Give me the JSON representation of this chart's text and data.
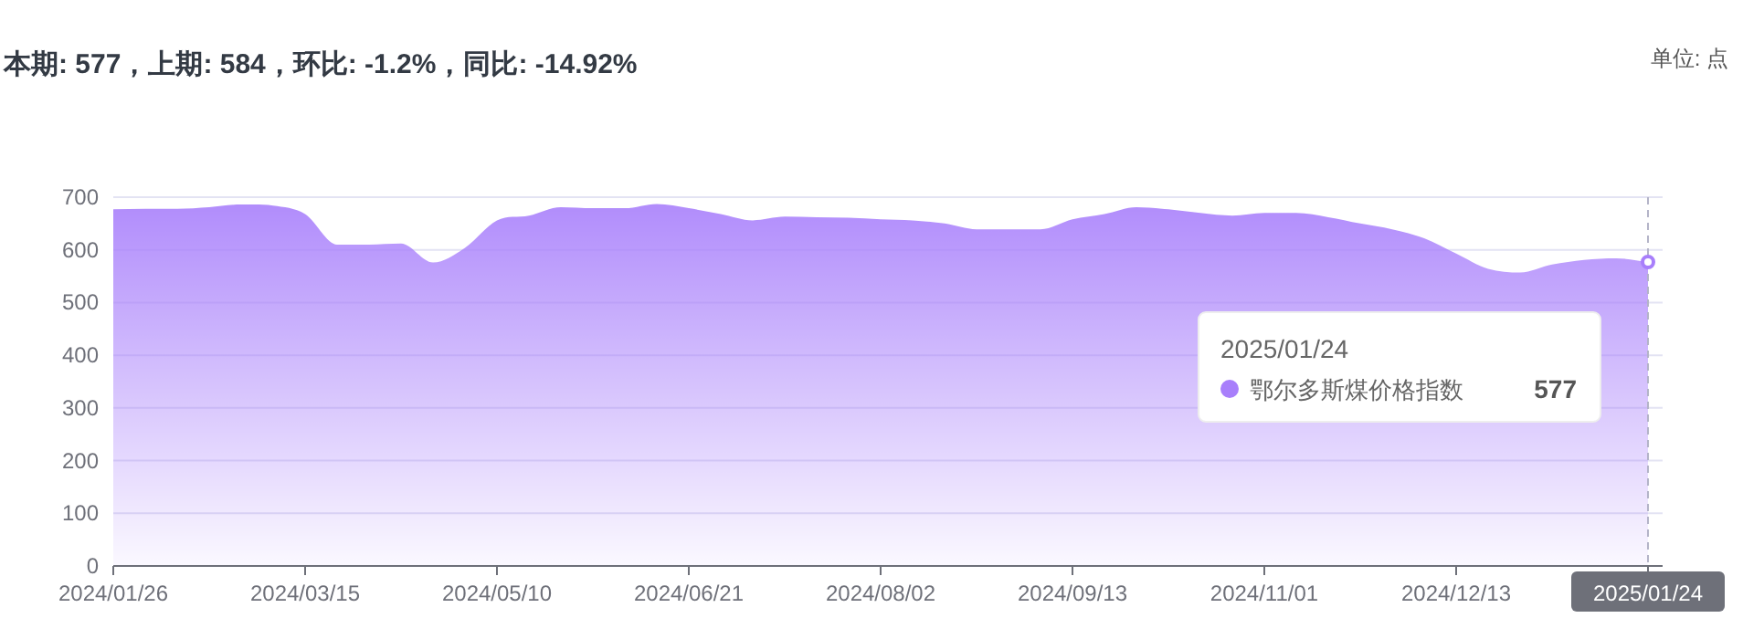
{
  "chart_data": {
    "type": "area",
    "title": "本期: 577，上期: 584，环比: -1.2%，同比: -14.92%",
    "annotations": [
      "单位: 点",
      "2025/01/24",
      "577"
    ],
    "categories": [
      "2024/01/26",
      null,
      null,
      null,
      null,
      null,
      "2024/03/15",
      null,
      null,
      null,
      null,
      null,
      "2024/05/10",
      null,
      null,
      null,
      null,
      null,
      "2024/06/21",
      null,
      null,
      null,
      null,
      null,
      "2024/08/02",
      null,
      null,
      null,
      null,
      null,
      "2024/09/13",
      null,
      null,
      null,
      null,
      null,
      "2024/11/01",
      null,
      null,
      null,
      null,
      null,
      "2024/12/13",
      null,
      null,
      null,
      null,
      null,
      "2025/01/24"
    ],
    "series": [
      {
        "name": "鄂尔多斯煤价格指数",
        "color": "#a87ffb",
        "values": [
          677,
          678,
          678,
          681,
          686,
          684,
          668,
          610,
          610,
          612,
          576,
          604,
          656,
          665,
          681,
          679,
          679,
          687,
          679,
          668,
          656,
          663,
          662,
          661,
          658,
          656,
          650,
          639,
          639,
          639,
          658,
          668,
          681,
          677,
          670,
          665,
          670,
          670,
          662,
          650,
          639,
          622,
          593,
          564,
          557,
          572,
          581,
          584,
          577
        ]
      }
    ],
    "ylim": [
      0,
      700
    ],
    "yticks": [
      0,
      100,
      200,
      300,
      400,
      500,
      600,
      700
    ],
    "grid": "y",
    "legend": "right",
    "ref_lines": [
      {
        "axis": "x",
        "value": "2025/01/24",
        "color": "#b4b4c8",
        "line_style": "dashed"
      }
    ]
  }
}
